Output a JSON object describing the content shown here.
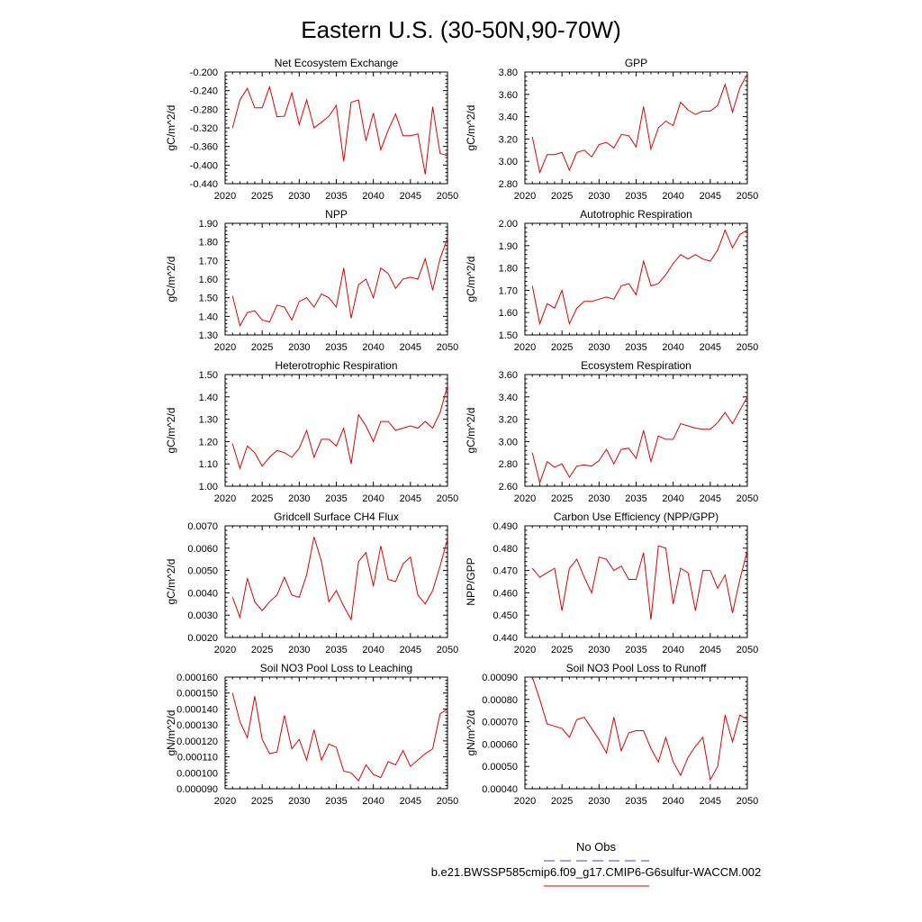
{
  "page": {
    "title": "Eastern U.S. (30-50N,90-70W)"
  },
  "legend": {
    "obs_label": "No Obs",
    "obs_color": "#4040e0",
    "case_label": "b.e21.BWSSP585cmip6.f09_g17.CMIP6-G6sulfur-WACCM.002",
    "case_color": "#e00000"
  },
  "chart_data": [
    {
      "type": "line",
      "title": "Net Ecosystem Exchange",
      "ylabel": "gC/m^2/d",
      "xlim": [
        2020,
        2050
      ],
      "ylim": [
        -0.44,
        -0.2
      ],
      "xticks": [
        "2020",
        "2025",
        "2030",
        "2035",
        "2040",
        "2045",
        "2050"
      ],
      "yticks": [
        "-0.200",
        "-0.240",
        "-0.280",
        "-0.320",
        "-0.360",
        "-0.400",
        "-0.440"
      ],
      "x": [
        2021,
        2022,
        2023,
        2024,
        2025,
        2026,
        2027,
        2028,
        2029,
        2030,
        2031,
        2032,
        2033,
        2034,
        2035,
        2036,
        2037,
        2038,
        2039,
        2040,
        2041,
        2042,
        2043,
        2044,
        2045,
        2046,
        2047,
        2048,
        2049,
        2050
      ],
      "series": [
        {
          "color": "#e00000",
          "values": [
            -0.32,
            -0.26,
            -0.235,
            -0.277,
            -0.277,
            -0.232,
            -0.296,
            -0.295,
            -0.245,
            -0.313,
            -0.26,
            -0.32,
            -0.308,
            -0.295,
            -0.272,
            -0.392,
            -0.265,
            -0.26,
            -0.348,
            -0.288,
            -0.367,
            -0.325,
            -0.29,
            -0.337,
            -0.337,
            -0.333,
            -0.42,
            -0.275,
            -0.375,
            -0.38
          ]
        }
      ]
    },
    {
      "type": "line",
      "title": "GPP",
      "ylabel": "gC/m^2/d",
      "xlim": [
        2020,
        2050
      ],
      "ylim": [
        2.8,
        3.8
      ],
      "xticks": [
        "2020",
        "2025",
        "2030",
        "2035",
        "2040",
        "2045",
        "2050"
      ],
      "yticks": [
        "3.80",
        "3.60",
        "3.40",
        "3.20",
        "3.00",
        "2.80"
      ],
      "x": [
        2021,
        2022,
        2023,
        2024,
        2025,
        2026,
        2027,
        2028,
        2029,
        2030,
        2031,
        2032,
        2033,
        2034,
        2035,
        2036,
        2037,
        2038,
        2039,
        2040,
        2041,
        2042,
        2043,
        2044,
        2045,
        2046,
        2047,
        2048,
        2049,
        2050
      ],
      "series": [
        {
          "color": "#e00000",
          "values": [
            3.22,
            2.9,
            3.06,
            3.06,
            3.08,
            2.92,
            3.08,
            3.1,
            3.04,
            3.15,
            3.17,
            3.12,
            3.24,
            3.23,
            3.13,
            3.49,
            3.11,
            3.3,
            3.36,
            3.32,
            3.53,
            3.46,
            3.42,
            3.45,
            3.45,
            3.5,
            3.69,
            3.44,
            3.66,
            3.78
          ]
        }
      ]
    },
    {
      "type": "line",
      "title": "NPP",
      "ylabel": "gC/m^2/d",
      "xlim": [
        2020,
        2050
      ],
      "ylim": [
        1.3,
        1.9
      ],
      "xticks": [
        "2020",
        "2025",
        "2030",
        "2035",
        "2040",
        "2045",
        "2050"
      ],
      "yticks": [
        "1.90",
        "1.80",
        "1.70",
        "1.60",
        "1.50",
        "1.40",
        "1.30"
      ],
      "x": [
        2021,
        2022,
        2023,
        2024,
        2025,
        2026,
        2027,
        2028,
        2029,
        2030,
        2031,
        2032,
        2033,
        2034,
        2035,
        2036,
        2037,
        2038,
        2039,
        2040,
        2041,
        2042,
        2043,
        2044,
        2045,
        2046,
        2047,
        2048,
        2049,
        2050
      ],
      "series": [
        {
          "color": "#e00000",
          "values": [
            1.51,
            1.35,
            1.42,
            1.43,
            1.38,
            1.37,
            1.46,
            1.45,
            1.38,
            1.48,
            1.5,
            1.45,
            1.52,
            1.5,
            1.45,
            1.66,
            1.39,
            1.57,
            1.6,
            1.5,
            1.66,
            1.63,
            1.55,
            1.6,
            1.61,
            1.6,
            1.71,
            1.54,
            1.71,
            1.82
          ]
        }
      ]
    },
    {
      "type": "line",
      "title": "Autotrophic Respiration",
      "ylabel": "gC/m^2/d",
      "xlim": [
        2020,
        2050
      ],
      "ylim": [
        1.5,
        2.0
      ],
      "xticks": [
        "2020",
        "2025",
        "2030",
        "2035",
        "2040",
        "2045",
        "2050"
      ],
      "yticks": [
        "2.00",
        "1.90",
        "1.80",
        "1.70",
        "1.60",
        "1.50"
      ],
      "x": [
        2021,
        2022,
        2023,
        2024,
        2025,
        2026,
        2027,
        2028,
        2029,
        2030,
        2031,
        2032,
        2033,
        2034,
        2035,
        2036,
        2037,
        2038,
        2039,
        2040,
        2041,
        2042,
        2043,
        2044,
        2045,
        2046,
        2047,
        2048,
        2049,
        2050
      ],
      "series": [
        {
          "color": "#e00000",
          "values": [
            1.72,
            1.55,
            1.64,
            1.62,
            1.7,
            1.55,
            1.62,
            1.65,
            1.65,
            1.66,
            1.67,
            1.66,
            1.72,
            1.73,
            1.68,
            1.83,
            1.72,
            1.73,
            1.77,
            1.82,
            1.86,
            1.84,
            1.86,
            1.84,
            1.83,
            1.88,
            1.97,
            1.89,
            1.95,
            1.97
          ]
        }
      ]
    },
    {
      "type": "line",
      "title": "Heterotrophic Respiration",
      "ylabel": "gC/m^2/d",
      "xlim": [
        2020,
        2050
      ],
      "ylim": [
        1.0,
        1.5
      ],
      "xticks": [
        "2020",
        "2025",
        "2030",
        "2035",
        "2040",
        "2045",
        "2050"
      ],
      "yticks": [
        "1.50",
        "1.40",
        "1.30",
        "1.20",
        "1.10",
        "1.00"
      ],
      "x": [
        2021,
        2022,
        2023,
        2024,
        2025,
        2026,
        2027,
        2028,
        2029,
        2030,
        2031,
        2032,
        2033,
        2034,
        2035,
        2036,
        2037,
        2038,
        2039,
        2040,
        2041,
        2042,
        2043,
        2044,
        2045,
        2046,
        2047,
        2048,
        2049,
        2050
      ],
      "series": [
        {
          "color": "#e00000",
          "values": [
            1.19,
            1.08,
            1.18,
            1.15,
            1.09,
            1.13,
            1.16,
            1.15,
            1.13,
            1.17,
            1.25,
            1.13,
            1.21,
            1.21,
            1.18,
            1.26,
            1.1,
            1.32,
            1.27,
            1.2,
            1.29,
            1.29,
            1.25,
            1.26,
            1.27,
            1.26,
            1.29,
            1.26,
            1.33,
            1.45
          ]
        }
      ]
    },
    {
      "type": "line",
      "title": "Ecosystem Respiration",
      "ylabel": "gC/m^2/d",
      "xlim": [
        2020,
        2050
      ],
      "ylim": [
        2.6,
        3.6
      ],
      "xticks": [
        "2020",
        "2025",
        "2030",
        "2035",
        "2040",
        "2045",
        "2050"
      ],
      "yticks": [
        "3.60",
        "3.40",
        "3.20",
        "3.00",
        "2.80",
        "2.60"
      ],
      "x": [
        2021,
        2022,
        2023,
        2024,
        2025,
        2026,
        2027,
        2028,
        2029,
        2030,
        2031,
        2032,
        2033,
        2034,
        2035,
        2036,
        2037,
        2038,
        2039,
        2040,
        2041,
        2042,
        2043,
        2044,
        2045,
        2046,
        2047,
        2048,
        2049,
        2050
      ],
      "series": [
        {
          "color": "#e00000",
          "values": [
            2.9,
            2.63,
            2.82,
            2.77,
            2.8,
            2.68,
            2.78,
            2.79,
            2.78,
            2.83,
            2.93,
            2.8,
            2.93,
            2.94,
            2.85,
            3.1,
            2.82,
            3.05,
            3.02,
            3.02,
            3.16,
            3.14,
            3.12,
            3.11,
            3.11,
            3.17,
            3.26,
            3.16,
            3.28,
            3.4
          ]
        }
      ]
    },
    {
      "type": "line",
      "title": "Gridcell Surface CH4 Flux",
      "ylabel": "gC/m^2/d",
      "xlim": [
        2020,
        2050
      ],
      "ylim": [
        0.002,
        0.007
      ],
      "xticks": [
        "2020",
        "2025",
        "2030",
        "2035",
        "2040",
        "2045",
        "2050"
      ],
      "yticks": [
        "0.0070",
        "0.0060",
        "0.0050",
        "0.0040",
        "0.0030",
        "0.0020"
      ],
      "x": [
        2021,
        2022,
        2023,
        2024,
        2025,
        2026,
        2027,
        2028,
        2029,
        2030,
        2031,
        2032,
        2033,
        2034,
        2035,
        2036,
        2037,
        2038,
        2039,
        2040,
        2041,
        2042,
        2043,
        2044,
        2045,
        2046,
        2047,
        2048,
        2049,
        2050
      ],
      "series": [
        {
          "color": "#e00000",
          "values": [
            0.0038,
            0.0029,
            0.00465,
            0.0036,
            0.0032,
            0.0036,
            0.0039,
            0.0047,
            0.0039,
            0.0038,
            0.0048,
            0.0065,
            0.0054,
            0.0036,
            0.0041,
            0.0034,
            0.0028,
            0.0054,
            0.0058,
            0.0043,
            0.0061,
            0.0046,
            0.0045,
            0.0053,
            0.0056,
            0.0039,
            0.0035,
            0.0041,
            0.0052,
            0.0064
          ]
        }
      ]
    },
    {
      "type": "line",
      "title": "Carbon Use Efficiency (NPP/GPP)",
      "ylabel": "NPP/GPP",
      "xlim": [
        2020,
        2050
      ],
      "ylim": [
        0.44,
        0.49
      ],
      "xticks": [
        "2020",
        "2025",
        "2030",
        "2035",
        "2040",
        "2045",
        "2050"
      ],
      "yticks": [
        "0.490",
        "0.480",
        "0.470",
        "0.460",
        "0.450",
        "0.440"
      ],
      "x": [
        2021,
        2022,
        2023,
        2024,
        2025,
        2026,
        2027,
        2028,
        2029,
        2030,
        2031,
        2032,
        2033,
        2034,
        2035,
        2036,
        2037,
        2038,
        2039,
        2040,
        2041,
        2042,
        2043,
        2044,
        2045,
        2046,
        2047,
        2048,
        2049,
        2050
      ],
      "series": [
        {
          "color": "#e00000",
          "values": [
            0.471,
            0.467,
            0.469,
            0.471,
            0.452,
            0.471,
            0.475,
            0.467,
            0.46,
            0.476,
            0.475,
            0.47,
            0.472,
            0.466,
            0.466,
            0.478,
            0.448,
            0.481,
            0.48,
            0.455,
            0.471,
            0.469,
            0.452,
            0.47,
            0.47,
            0.462,
            0.468,
            0.451,
            0.466,
            0.479
          ]
        }
      ]
    },
    {
      "type": "line",
      "title": "Soil NO3 Pool Loss to Leaching",
      "ylabel": "gN/m^2/d",
      "xlim": [
        2020,
        2050
      ],
      "ylim": [
        9e-05,
        0.00016
      ],
      "xticks": [
        "2020",
        "2025",
        "2030",
        "2035",
        "2040",
        "2045",
        "2050"
      ],
      "yticks": [
        "0.000160",
        "0.000150",
        "0.000140",
        "0.000130",
        "0.000120",
        "0.000110",
        "0.000100",
        "0.000090"
      ],
      "x": [
        2021,
        2022,
        2023,
        2024,
        2025,
        2026,
        2027,
        2028,
        2029,
        2030,
        2031,
        2032,
        2033,
        2034,
        2035,
        2036,
        2037,
        2038,
        2039,
        2040,
        2041,
        2042,
        2043,
        2044,
        2045,
        2046,
        2047,
        2048,
        2049,
        2050
      ],
      "series": [
        {
          "color": "#e00000",
          "values": [
            0.00015,
            0.000132,
            0.000122,
            0.000148,
            0.000121,
            0.000112,
            0.000113,
            0.000136,
            0.000115,
            0.000121,
            0.000108,
            0.000127,
            0.000108,
            0.000118,
            0.000116,
            0.000101,
            0.0001,
            9.5e-05,
            0.000105,
            9.9e-05,
            9.7e-05,
            0.000107,
            0.000105,
            0.000114,
            0.000104,
            0.000108,
            0.000112,
            0.000115,
            0.000137,
            0.00014
          ]
        }
      ]
    },
    {
      "type": "line",
      "title": "Soil NO3 Pool Loss to Runoff",
      "ylabel": "gN/m^2/d",
      "xlim": [
        2020,
        2050
      ],
      "ylim": [
        0.0004,
        0.0009
      ],
      "xticks": [
        "2020",
        "2025",
        "2030",
        "2035",
        "2040",
        "2045",
        "2050"
      ],
      "yticks": [
        "0.00090",
        "0.00080",
        "0.00070",
        "0.00060",
        "0.00050",
        "0.00040"
      ],
      "x": [
        2021,
        2022,
        2023,
        2024,
        2025,
        2026,
        2027,
        2028,
        2029,
        2030,
        2031,
        2032,
        2033,
        2034,
        2035,
        2036,
        2037,
        2038,
        2039,
        2040,
        2041,
        2042,
        2043,
        2044,
        2045,
        2046,
        2047,
        2048,
        2049,
        2050
      ],
      "series": [
        {
          "color": "#e00000",
          "values": [
            0.0009,
            0.0008,
            0.00069,
            0.00068,
            0.00067,
            0.00063,
            0.00071,
            0.00072,
            0.00067,
            0.00062,
            0.00056,
            0.00072,
            0.00057,
            0.00065,
            0.00066,
            0.00066,
            0.00058,
            0.00052,
            0.00063,
            0.00052,
            0.00046,
            0.00054,
            0.00059,
            0.00063,
            0.00044,
            0.0005,
            0.00073,
            0.00061,
            0.00073,
            0.00071
          ]
        }
      ]
    }
  ]
}
